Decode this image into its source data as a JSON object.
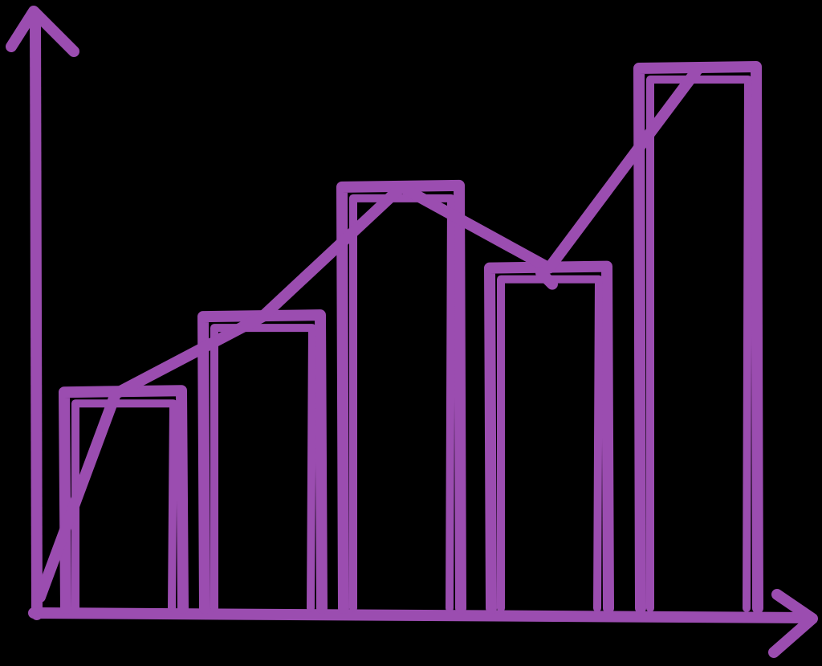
{
  "chart_data": {
    "type": "bar",
    "style": "hand-drawn sketch, outline only, with trend line connecting bar tops",
    "colors": {
      "background": "#000000",
      "stroke": "#9B4DB0"
    },
    "categories": [
      "",
      "",
      "",
      "",
      ""
    ],
    "values": [
      40,
      54,
      78,
      63,
      100
    ],
    "trend_line": [
      40,
      54,
      78,
      63,
      100
    ],
    "ylim": [
      0,
      100
    ],
    "grid": false,
    "legend": "none",
    "title": "",
    "xlabel": "",
    "ylabel": ""
  }
}
